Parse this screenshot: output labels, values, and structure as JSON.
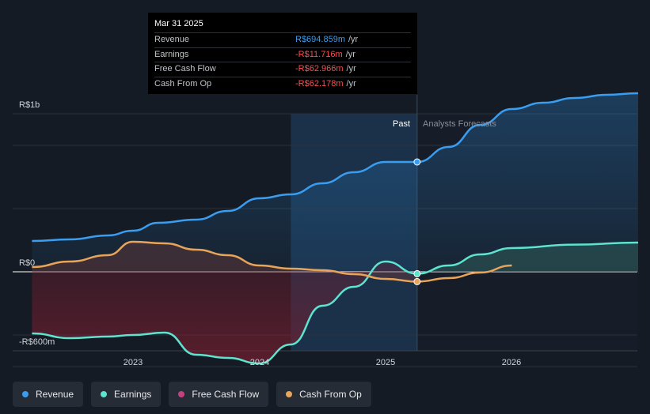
{
  "chart_data": {
    "type": "line",
    "title": "",
    "y_axis": {
      "min": -600,
      "max": 1000,
      "unit": "m",
      "labels": [
        "R$1b",
        "R$0",
        "-R$600m"
      ]
    },
    "x_axis": {
      "tick_labels": [
        "2023",
        "2024",
        "2025",
        "2026"
      ]
    },
    "regions": {
      "past_label": "Past",
      "forecast_label": "Analysts Forecasts",
      "divider_date": 2025.25
    },
    "series": [
      {
        "name": "Revenue",
        "color": "#3a9df0",
        "points": [
          [
            2022.2,
            195
          ],
          [
            2022.5,
            205
          ],
          [
            2022.8,
            230
          ],
          [
            2023.0,
            260
          ],
          [
            2023.2,
            310
          ],
          [
            2023.5,
            330
          ],
          [
            2023.75,
            385
          ],
          [
            2024.0,
            465
          ],
          [
            2024.25,
            490
          ],
          [
            2024.5,
            560
          ],
          [
            2024.75,
            630
          ],
          [
            2025.0,
            695
          ],
          [
            2025.25,
            695
          ]
        ],
        "forecast": [
          [
            2025.25,
            695
          ],
          [
            2025.5,
            790
          ],
          [
            2025.75,
            930
          ],
          [
            2026.0,
            1030
          ],
          [
            2026.25,
            1070
          ],
          [
            2026.5,
            1100
          ],
          [
            2026.75,
            1120
          ],
          [
            2027.0,
            1130
          ]
        ]
      },
      {
        "name": "Earnings",
        "color": "#5ee3cf",
        "points": [
          [
            2022.2,
            -390
          ],
          [
            2022.5,
            -420
          ],
          [
            2022.8,
            -410
          ],
          [
            2023.0,
            -400
          ],
          [
            2023.25,
            -385
          ],
          [
            2023.5,
            -525
          ],
          [
            2023.75,
            -545
          ],
          [
            2024.0,
            -580
          ],
          [
            2024.25,
            -460
          ],
          [
            2024.5,
            -215
          ],
          [
            2024.75,
            -95
          ],
          [
            2025.0,
            65
          ],
          [
            2025.25,
            -12
          ]
        ],
        "forecast": [
          [
            2025.25,
            -12
          ],
          [
            2025.5,
            40
          ],
          [
            2025.75,
            110
          ],
          [
            2026.0,
            150
          ],
          [
            2026.5,
            172
          ],
          [
            2027.0,
            185
          ]
        ]
      },
      {
        "name": "Free Cash Flow",
        "color": "#c2417f",
        "points": []
      },
      {
        "name": "Cash From Op",
        "color": "#e8a55a",
        "points": [
          [
            2022.2,
            30
          ],
          [
            2022.5,
            65
          ],
          [
            2022.8,
            105
          ],
          [
            2023.0,
            190
          ],
          [
            2023.25,
            180
          ],
          [
            2023.5,
            140
          ],
          [
            2023.75,
            105
          ],
          [
            2024.0,
            40
          ],
          [
            2024.25,
            20
          ],
          [
            2024.5,
            10
          ],
          [
            2024.75,
            -15
          ],
          [
            2025.0,
            -45
          ],
          [
            2025.25,
            -62
          ]
        ],
        "forecast": [
          [
            2025.25,
            -62
          ],
          [
            2025.5,
            -40
          ],
          [
            2025.75,
            -5
          ],
          [
            2026.0,
            40
          ]
        ]
      }
    ],
    "tooltip": {
      "date": "Mar 31 2025",
      "rows": [
        {
          "label": "Revenue",
          "value": "R$694.859m",
          "unit": "/yr",
          "color": "#3a9df0"
        },
        {
          "label": "Earnings",
          "value": "-R$11.716m",
          "unit": "/yr",
          "color": "#ff4d4f"
        },
        {
          "label": "Free Cash Flow",
          "value": "-R$62.966m",
          "unit": "/yr",
          "color": "#ff4d4f"
        },
        {
          "label": "Cash From Op",
          "value": "-R$62.178m",
          "unit": "/yr",
          "color": "#ff4d4f"
        }
      ]
    }
  },
  "legend": [
    {
      "label": "Revenue",
      "color": "#3a9df0"
    },
    {
      "label": "Earnings",
      "color": "#5ee3cf"
    },
    {
      "label": "Free Cash Flow",
      "color": "#c2417f"
    },
    {
      "label": "Cash From Op",
      "color": "#e8a55a"
    }
  ]
}
